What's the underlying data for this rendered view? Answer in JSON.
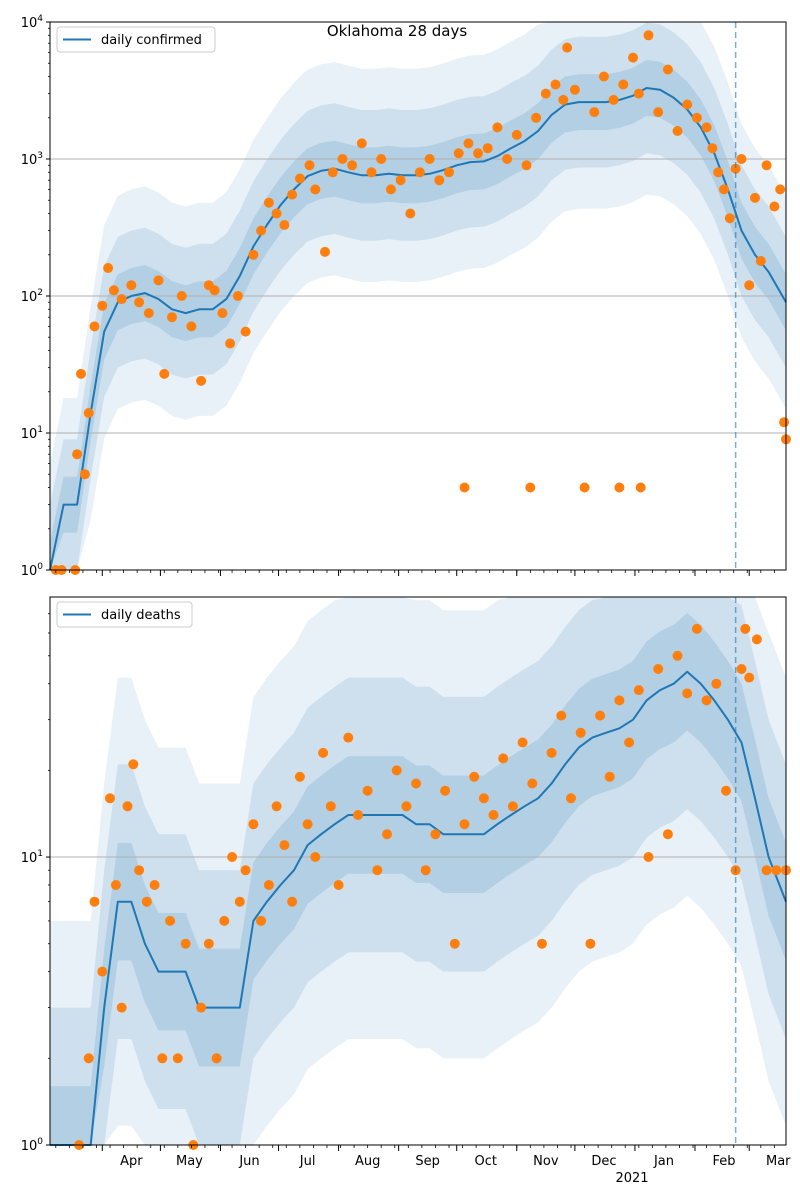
{
  "figure": {
    "title": "Oklahoma 28 days"
  },
  "colors": {
    "line": "#1f77b4",
    "points": "#ff7f0e",
    "band": "#1f77b4",
    "grid": "#b0b0b0",
    "vline": "#1f77b4"
  },
  "chart_data": [
    {
      "type": "line",
      "title": "Oklahoma 28 days",
      "yscale": "log",
      "ylim": [
        1,
        10000
      ],
      "xlim": [
        "2020-03-05",
        "2021-03-20"
      ],
      "grid": "horizontal major",
      "legend": "top-left",
      "series": [
        {
          "name": "daily confirmed",
          "kind": "line",
          "x": [
            "2020-03-05",
            "2020-03-12",
            "2020-03-19",
            "2020-03-26",
            "2020-04-02",
            "2020-04-09",
            "2020-04-16",
            "2020-04-23",
            "2020-04-30",
            "2020-05-07",
            "2020-05-14",
            "2020-05-21",
            "2020-05-28",
            "2020-06-04",
            "2020-06-11",
            "2020-06-18",
            "2020-06-25",
            "2020-07-02",
            "2020-07-09",
            "2020-07-16",
            "2020-07-23",
            "2020-07-30",
            "2020-08-06",
            "2020-08-13",
            "2020-08-20",
            "2020-08-27",
            "2020-09-03",
            "2020-09-10",
            "2020-09-17",
            "2020-09-24",
            "2020-10-01",
            "2020-10-08",
            "2020-10-15",
            "2020-10-22",
            "2020-10-29",
            "2020-11-05",
            "2020-11-12",
            "2020-11-19",
            "2020-11-26",
            "2020-12-03",
            "2020-12-10",
            "2020-12-17",
            "2020-12-24",
            "2020-12-31",
            "2021-01-07",
            "2021-01-14",
            "2021-01-21",
            "2021-01-28",
            "2021-02-04",
            "2021-02-11",
            "2021-02-18",
            "2021-02-25",
            "2021-03-04",
            "2021-03-11",
            "2021-03-20"
          ],
          "y": [
            1,
            3,
            3,
            14,
            55,
            90,
            100,
            105,
            95,
            80,
            75,
            80,
            80,
            95,
            140,
            230,
            330,
            460,
            600,
            750,
            820,
            850,
            800,
            760,
            760,
            780,
            760,
            760,
            780,
            830,
            900,
            950,
            960,
            1050,
            1200,
            1350,
            1600,
            2100,
            2500,
            2600,
            2600,
            2600,
            2700,
            2900,
            3300,
            3200,
            2800,
            2300,
            1700,
            1100,
            600,
            300,
            200,
            150,
            90
          ]
        },
        {
          "name": "",
          "kind": "scatter",
          "x": [
            "2020-03-08",
            "2020-03-11",
            "2020-03-18",
            "2020-03-19",
            "2020-03-21",
            "2020-03-23",
            "2020-03-25",
            "2020-03-28",
            "2020-04-01",
            "2020-04-04",
            "2020-04-07",
            "2020-04-11",
            "2020-04-16",
            "2020-04-20",
            "2020-04-25",
            "2020-04-30",
            "2020-05-03",
            "2020-05-07",
            "2020-05-12",
            "2020-05-17",
            "2020-05-22",
            "2020-05-26",
            "2020-05-29",
            "2020-06-02",
            "2020-06-06",
            "2020-06-10",
            "2020-06-14",
            "2020-06-18",
            "2020-06-22",
            "2020-06-26",
            "2020-06-30",
            "2020-07-04",
            "2020-07-08",
            "2020-07-12",
            "2020-07-17",
            "2020-07-20",
            "2020-07-25",
            "2020-07-29",
            "2020-08-03",
            "2020-08-08",
            "2020-08-13",
            "2020-08-18",
            "2020-08-23",
            "2020-08-28",
            "2020-09-02",
            "2020-09-07",
            "2020-09-12",
            "2020-09-17",
            "2020-09-22",
            "2020-09-27",
            "2020-10-02",
            "2020-10-05",
            "2020-10-07",
            "2020-10-12",
            "2020-10-17",
            "2020-10-22",
            "2020-10-27",
            "2020-11-01",
            "2020-11-06",
            "2020-11-08",
            "2020-11-11",
            "2020-11-16",
            "2020-11-21",
            "2020-11-25",
            "2020-11-27",
            "2020-12-01",
            "2020-12-06",
            "2020-12-11",
            "2020-12-16",
            "2020-12-21",
            "2020-12-24",
            "2020-12-26",
            "2020-12-31",
            "2021-01-03",
            "2021-01-04",
            "2021-01-08",
            "2021-01-13",
            "2021-01-18",
            "2021-01-23",
            "2021-01-28",
            "2021-02-02",
            "2021-02-07",
            "2021-02-10",
            "2021-02-13",
            "2021-02-16",
            "2021-02-19",
            "2021-02-22",
            "2021-02-25",
            "2021-03-01",
            "2021-03-04",
            "2021-03-07",
            "2021-03-10",
            "2021-03-14",
            "2021-03-17",
            "2021-03-19",
            "2021-03-20"
          ],
          "y": [
            1,
            1,
            1,
            7,
            27,
            5,
            14,
            60,
            85,
            160,
            110,
            95,
            120,
            90,
            75,
            130,
            27,
            70,
            100,
            60,
            24,
            120,
            110,
            75,
            45,
            100,
            55,
            200,
            300,
            480,
            400,
            330,
            550,
            720,
            900,
            600,
            210,
            800,
            1000,
            900,
            1300,
            800,
            1000,
            600,
            700,
            400,
            800,
            1000,
            700,
            800,
            1100,
            4,
            1300,
            1100,
            1200,
            1700,
            1000,
            1500,
            900,
            4,
            2000,
            3000,
            3500,
            2700,
            6500,
            3200,
            4,
            2200,
            4000,
            2700,
            4,
            3500,
            5500,
            3000,
            4,
            8000,
            2200,
            4500,
            1600,
            2500,
            2000,
            1700,
            1200,
            800,
            600,
            370,
            850,
            1000,
            120,
            520,
            180,
            900,
            450,
            600,
            12,
            9
          ]
        }
      ],
      "annotations": [
        {
          "type": "vline",
          "x": "2021-02-22",
          "style": "dashed"
        }
      ]
    },
    {
      "type": "line",
      "title": "",
      "yscale": "log",
      "ylim": [
        1,
        80
      ],
      "xlim": [
        "2020-03-05",
        "2021-03-20"
      ],
      "grid": "horizontal major",
      "legend": "top-left",
      "xtick_labels": [
        "Apr",
        "May",
        "Jun",
        "Jul",
        "Aug",
        "Sep",
        "Oct",
        "Nov",
        "Dec",
        "Jan",
        "Feb",
        "Mar"
      ],
      "xtick_year_label": "2021",
      "series": [
        {
          "name": "daily deaths",
          "kind": "line",
          "x": [
            "2020-03-05",
            "2020-03-12",
            "2020-03-19",
            "2020-03-26",
            "2020-04-02",
            "2020-04-09",
            "2020-04-16",
            "2020-04-23",
            "2020-04-30",
            "2020-05-07",
            "2020-05-14",
            "2020-05-21",
            "2020-05-28",
            "2020-06-04",
            "2020-06-11",
            "2020-06-18",
            "2020-06-25",
            "2020-07-02",
            "2020-07-09",
            "2020-07-16",
            "2020-07-23",
            "2020-07-30",
            "2020-08-06",
            "2020-08-13",
            "2020-08-20",
            "2020-08-27",
            "2020-09-03",
            "2020-09-10",
            "2020-09-17",
            "2020-09-24",
            "2020-10-01",
            "2020-10-08",
            "2020-10-15",
            "2020-10-22",
            "2020-10-29",
            "2020-11-05",
            "2020-11-12",
            "2020-11-19",
            "2020-11-26",
            "2020-12-03",
            "2020-12-10",
            "2020-12-17",
            "2020-12-24",
            "2020-12-31",
            "2021-01-07",
            "2021-01-14",
            "2021-01-21",
            "2021-01-28",
            "2021-02-04",
            "2021-02-11",
            "2021-02-18",
            "2021-02-25",
            "2021-03-04",
            "2021-03-11",
            "2021-03-20"
          ],
          "y": [
            1,
            1,
            1,
            1,
            3,
            7,
            7,
            5,
            4,
            4,
            4,
            3,
            3,
            3,
            3,
            6,
            7,
            8,
            9,
            11,
            12,
            13,
            14,
            14,
            14,
            14,
            14,
            13,
            13,
            12,
            12,
            12,
            12,
            13,
            14,
            15,
            16,
            18,
            21,
            24,
            26,
            27,
            28,
            30,
            35,
            38,
            40,
            44,
            40,
            35,
            30,
            25,
            16,
            10,
            7
          ]
        },
        {
          "name": "",
          "kind": "scatter",
          "x": [
            "2020-03-20",
            "2020-03-25",
            "2020-03-28",
            "2020-04-01",
            "2020-04-05",
            "2020-04-08",
            "2020-04-11",
            "2020-04-14",
            "2020-04-17",
            "2020-04-20",
            "2020-04-24",
            "2020-04-28",
            "2020-05-02",
            "2020-05-06",
            "2020-05-10",
            "2020-05-14",
            "2020-05-18",
            "2020-05-22",
            "2020-05-26",
            "2020-05-30",
            "2020-06-03",
            "2020-06-07",
            "2020-06-11",
            "2020-06-14",
            "2020-06-18",
            "2020-06-22",
            "2020-06-26",
            "2020-06-30",
            "2020-07-04",
            "2020-07-08",
            "2020-07-12",
            "2020-07-16",
            "2020-07-20",
            "2020-07-24",
            "2020-07-28",
            "2020-08-01",
            "2020-08-06",
            "2020-08-11",
            "2020-08-16",
            "2020-08-21",
            "2020-08-26",
            "2020-08-31",
            "2020-09-05",
            "2020-09-10",
            "2020-09-15",
            "2020-09-20",
            "2020-09-25",
            "2020-09-30",
            "2020-10-05",
            "2020-10-10",
            "2020-10-15",
            "2020-10-20",
            "2020-10-25",
            "2020-10-30",
            "2020-11-04",
            "2020-11-09",
            "2020-11-14",
            "2020-11-19",
            "2020-11-24",
            "2020-11-29",
            "2020-12-04",
            "2020-12-09",
            "2020-12-14",
            "2020-12-19",
            "2020-12-24",
            "2020-12-29",
            "2021-01-03",
            "2021-01-08",
            "2021-01-13",
            "2021-01-18",
            "2021-01-23",
            "2021-01-28",
            "2021-02-02",
            "2021-02-07",
            "2021-02-12",
            "2021-02-17",
            "2021-02-22",
            "2021-02-25",
            "2021-02-27",
            "2021-03-01",
            "2021-03-05",
            "2021-03-10",
            "2021-03-15",
            "2021-03-20"
          ],
          "y": [
            1,
            2,
            7,
            4,
            16,
            8,
            3,
            15,
            21,
            9,
            7,
            8,
            2,
            6,
            2,
            5,
            1,
            3,
            5,
            2,
            6,
            10,
            7,
            9,
            13,
            6,
            8,
            15,
            11,
            7,
            19,
            13,
            10,
            23,
            15,
            8,
            26,
            14,
            17,
            9,
            12,
            20,
            15,
            18,
            9,
            12,
            17,
            5,
            13,
            19,
            16,
            14,
            22,
            15,
            25,
            18,
            5,
            23,
            31,
            16,
            27,
            5,
            31,
            19,
            35,
            25,
            38,
            10,
            45,
            12,
            50,
            37,
            62,
            35,
            40,
            17,
            9,
            45,
            62,
            42,
            57,
            9,
            9,
            9
          ]
        }
      ],
      "annotations": [
        {
          "type": "vline",
          "x": "2021-02-22",
          "style": "dashed"
        }
      ]
    }
  ]
}
